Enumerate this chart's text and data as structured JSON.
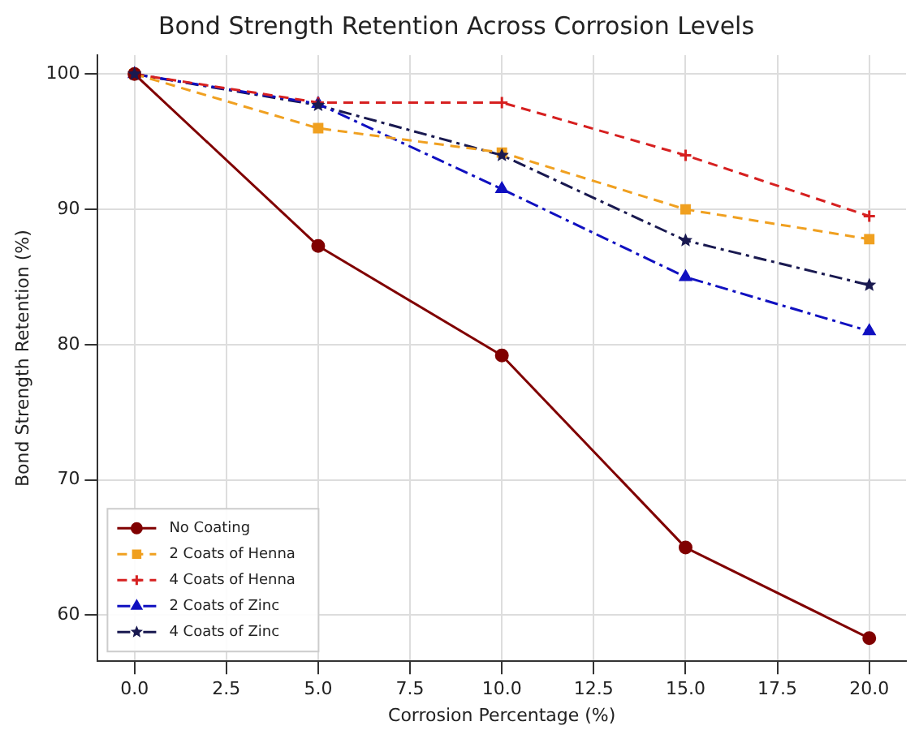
{
  "chart_data": {
    "type": "line",
    "title": "Bond Strength Retention Across Corrosion Levels",
    "xlabel": "Corrosion Percentage (%)",
    "ylabel": "Bond Strength Retention (%)",
    "x": [
      0,
      5,
      10,
      15,
      20
    ],
    "xlim": [
      -1,
      21
    ],
    "xticks": [
      {
        "value": 0,
        "label": "0.0"
      },
      {
        "value": 2.5,
        "label": "2.5"
      },
      {
        "value": 5,
        "label": "5.0"
      },
      {
        "value": 7.5,
        "label": "7.5"
      },
      {
        "value": 10,
        "label": "10.0"
      },
      {
        "value": 12.5,
        "label": "12.5"
      },
      {
        "value": 15,
        "label": "15.0"
      },
      {
        "value": 17.5,
        "label": "17.5"
      },
      {
        "value": 20,
        "label": "20.0"
      }
    ],
    "ylim": [
      56.6,
      101.4
    ],
    "yticks": [
      60,
      70,
      80,
      90,
      100
    ],
    "grid": true,
    "legend": "bottom left",
    "series": [
      {
        "name": "No Coating",
        "color": "#800000",
        "values": [
          100,
          87.3,
          79.2,
          65,
          58.3
        ],
        "marker": "circle",
        "line_style": "solid"
      },
      {
        "name": "2 Coats of Henna",
        "color": "#f0a020",
        "values": [
          100,
          96,
          94.2,
          90,
          87.8
        ],
        "marker": "square",
        "line_style": "dashed"
      },
      {
        "name": "4 Coats of Henna",
        "color": "#d62020",
        "values": [
          100,
          97.9,
          97.9,
          94,
          89.5
        ],
        "marker": "cross",
        "line_style": "dashed"
      },
      {
        "name": "2 Coats of Zinc",
        "color": "#1010c0",
        "values": [
          100,
          97.8,
          91.5,
          85,
          81
        ],
        "marker": "triangle",
        "line_style": "dashdot"
      },
      {
        "name": "4 Coats of Zinc",
        "color": "#191950",
        "values": [
          100,
          97.7,
          94,
          87.7,
          84.4
        ],
        "marker": "star",
        "line_style": "dashdot"
      }
    ]
  }
}
